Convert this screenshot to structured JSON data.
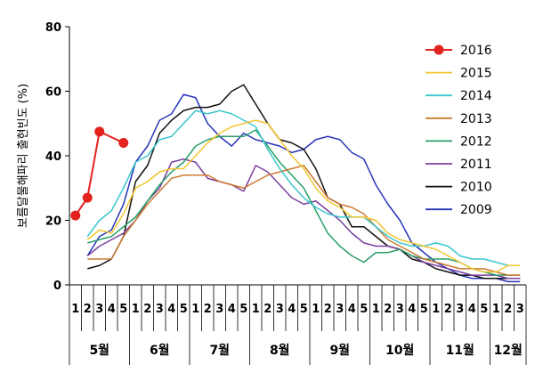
{
  "chart_data": {
    "type": "line",
    "ylabel": "보름달물해파리 출현빈도 (%)",
    "ylim": [
      0,
      80
    ],
    "yticks": [
      0,
      20,
      40,
      60,
      80
    ],
    "grid": false,
    "legend_position": "right",
    "weeks": [
      {
        "label": "1",
        "month": "5월"
      },
      {
        "label": "2",
        "month": "5월"
      },
      {
        "label": "3",
        "month": "5월"
      },
      {
        "label": "4",
        "month": "5월"
      },
      {
        "label": "5",
        "month": "5월"
      },
      {
        "label": "1",
        "month": "6월"
      },
      {
        "label": "2",
        "month": "6월"
      },
      {
        "label": "3",
        "month": "6월"
      },
      {
        "label": "4",
        "month": "6월"
      },
      {
        "label": "5",
        "month": "6월"
      },
      {
        "label": "1",
        "month": "7월"
      },
      {
        "label": "2",
        "month": "7월"
      },
      {
        "label": "3",
        "month": "7월"
      },
      {
        "label": "4",
        "month": "7월"
      },
      {
        "label": "5",
        "month": "7월"
      },
      {
        "label": "1",
        "month": "8월"
      },
      {
        "label": "2",
        "month": "8월"
      },
      {
        "label": "3",
        "month": "8월"
      },
      {
        "label": "4",
        "month": "8월"
      },
      {
        "label": "5",
        "month": "8월"
      },
      {
        "label": "1",
        "month": "9월"
      },
      {
        "label": "2",
        "month": "9월"
      },
      {
        "label": "3",
        "month": "9월"
      },
      {
        "label": "4",
        "month": "9월"
      },
      {
        "label": "5",
        "month": "9월"
      },
      {
        "label": "1",
        "month": "10월"
      },
      {
        "label": "2",
        "month": "10월"
      },
      {
        "label": "3",
        "month": "10월"
      },
      {
        "label": "4",
        "month": "10월"
      },
      {
        "label": "5",
        "month": "10월"
      },
      {
        "label": "1",
        "month": "11월"
      },
      {
        "label": "2",
        "month": "11월"
      },
      {
        "label": "3",
        "month": "11월"
      },
      {
        "label": "4",
        "month": "11월"
      },
      {
        "label": "5",
        "month": "11월"
      },
      {
        "label": "1",
        "month": "12월"
      },
      {
        "label": "2",
        "month": "12월"
      },
      {
        "label": "3",
        "month": "12월"
      }
    ],
    "months": [
      "5월",
      "6월",
      "7월",
      "8월",
      "9월",
      "10월",
      "11월",
      "12월"
    ],
    "series": [
      {
        "name": "2016",
        "color": "#e3211d",
        "marker": true,
        "width": 2,
        "values": [
          21.5,
          27,
          47.5,
          null,
          44
        ]
      },
      {
        "name": "2015",
        "color": "#f2c531",
        "marker": false,
        "width": 1.5,
        "values": [
          null,
          14,
          17,
          16,
          22,
          30,
          32,
          35,
          36,
          36,
          40,
          44,
          47,
          49,
          50,
          51,
          50,
          45,
          40,
          36,
          30,
          26,
          24,
          21,
          21,
          20,
          16,
          14,
          13,
          12,
          11,
          9,
          7,
          5,
          4,
          4,
          6,
          6
        ]
      },
      {
        "name": "2014",
        "color": "#3cc6cc",
        "marker": false,
        "width": 1.5,
        "values": [
          null,
          15,
          20,
          23,
          30,
          38,
          40,
          45,
          46,
          50,
          54,
          53,
          54,
          53,
          51,
          49,
          42,
          36,
          31,
          27,
          24,
          22,
          21,
          21,
          21,
          18,
          15,
          13,
          12,
          12,
          13,
          12,
          9,
          8,
          8,
          7,
          6,
          6
        ]
      },
      {
        "name": "2013",
        "color": "#cc7a30",
        "marker": false,
        "width": 1.5,
        "values": [
          null,
          8,
          8,
          8,
          15,
          20,
          25,
          29,
          33,
          34,
          34,
          34,
          32,
          31,
          30,
          32,
          34,
          35,
          36,
          37,
          32,
          27,
          25,
          24,
          22,
          18,
          14,
          12,
          10,
          8,
          7,
          6,
          5,
          5,
          5,
          4,
          3,
          3
        ]
      },
      {
        "name": "2012",
        "color": "#2aa068",
        "marker": false,
        "width": 1.5,
        "values": [
          null,
          13,
          14,
          15,
          18,
          21,
          26,
          31,
          35,
          38,
          43,
          45,
          46,
          46,
          46,
          48,
          43,
          38,
          34,
          30,
          23,
          16,
          12,
          9,
          7,
          10,
          10,
          11,
          9,
          8,
          8,
          8,
          7,
          5,
          4,
          3,
          3,
          3
        ]
      },
      {
        "name": "2011",
        "color": "#7b3f9e",
        "marker": false,
        "width": 1.5,
        "values": [
          null,
          9,
          12,
          14,
          16,
          20,
          26,
          30,
          38,
          39,
          38,
          33,
          32,
          31,
          29,
          37,
          35,
          31,
          27,
          25,
          26,
          23,
          20,
          16,
          13,
          12,
          12,
          11,
          9,
          7,
          6,
          5,
          4,
          3,
          3,
          3,
          2,
          2
        ]
      },
      {
        "name": "2010",
        "color": "#111111",
        "marker": false,
        "width": 1.5,
        "values": [
          null,
          5,
          6,
          8,
          15,
          32,
          37,
          47,
          51,
          54,
          55,
          55,
          56,
          60,
          62,
          56,
          50,
          45,
          44,
          42,
          36,
          27,
          25,
          18,
          18,
          15,
          12,
          11,
          8,
          7,
          5,
          4,
          3,
          3,
          2,
          2,
          2,
          2
        ]
      },
      {
        "name": "2009",
        "color": "#2835b8",
        "marker": false,
        "width": 1.5,
        "values": [
          null,
          9,
          15,
          17,
          25,
          38,
          43,
          51,
          53,
          59,
          58,
          50,
          46,
          43,
          47,
          45,
          44,
          43,
          41,
          42,
          45,
          46,
          45,
          41,
          39,
          31,
          25,
          20,
          13,
          10,
          7,
          5,
          3,
          2,
          2,
          2,
          1,
          1
        ]
      }
    ]
  }
}
